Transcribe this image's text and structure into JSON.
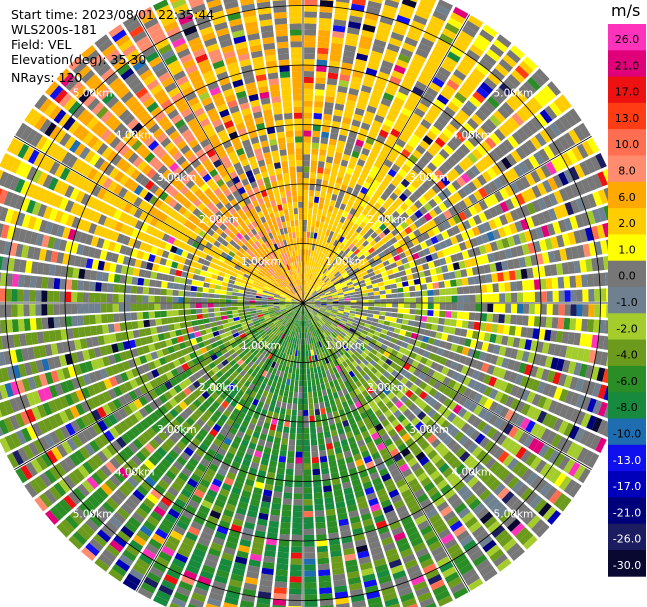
{
  "header": {
    "start_time": "Start time: 2023/08/01 22:35:44",
    "site": "WLS200s-181",
    "field": "Field: VEL",
    "elevation": "Elevation(deg): 35.30",
    "nrays": "NRays: 120"
  },
  "chart_data": {
    "type": "ppi-radar",
    "field": "VEL",
    "unit": "m/s",
    "n_rays": 120,
    "range_rings_km": [
      1.0,
      2.0,
      3.0,
      4.0,
      5.0
    ],
    "ring_labels": [
      "1.00km",
      "2.00km",
      "3.00km",
      "4.00km",
      "5.00km"
    ],
    "max_range_km": 5.6,
    "spoke_step_deg": 30,
    "colorbar": {
      "labels": [
        "26.0",
        "21.0",
        "17.0",
        "13.0",
        "10.0",
        "8.0",
        "6.0",
        "2.0",
        "1.0",
        "0.0",
        "-1.0",
        "-2.0",
        "-4.0",
        "-6.0",
        "-8.0",
        "-10.0",
        "-13.0",
        "-17.0",
        "-21.0",
        "-26.0",
        "-30.0"
      ],
      "colors": [
        "#ff33bb",
        "#e0007a",
        "#ee1111",
        "#ff3c14",
        "#ff6e50",
        "#ff8c6e",
        "#ffa800",
        "#ffcc00",
        "#ffff00",
        "#777777",
        "#6f8090",
        "#a4cc2c",
        "#6c9a1c",
        "#2b8d26",
        "#178a3e",
        "#1e6db0",
        "#1010ee",
        "#0000bb",
        "#00007a",
        "#1c1c60",
        "#080830"
      ]
    },
    "velocity_pattern": [
      {
        "sector": "north-west",
        "dominant_value": 8.0
      },
      {
        "sector": "north",
        "dominant_value": 6.0
      },
      {
        "sector": "north-east",
        "dominant_value": 2.0
      },
      {
        "sector": "east",
        "dominant_value": 0.0
      },
      {
        "sector": "south-east",
        "dominant_value": -2.0
      },
      {
        "sector": "south",
        "dominant_value": -6.0
      },
      {
        "sector": "south-west",
        "dominant_value": -4.0
      },
      {
        "sector": "west",
        "dominant_value": -2.0
      }
    ]
  }
}
